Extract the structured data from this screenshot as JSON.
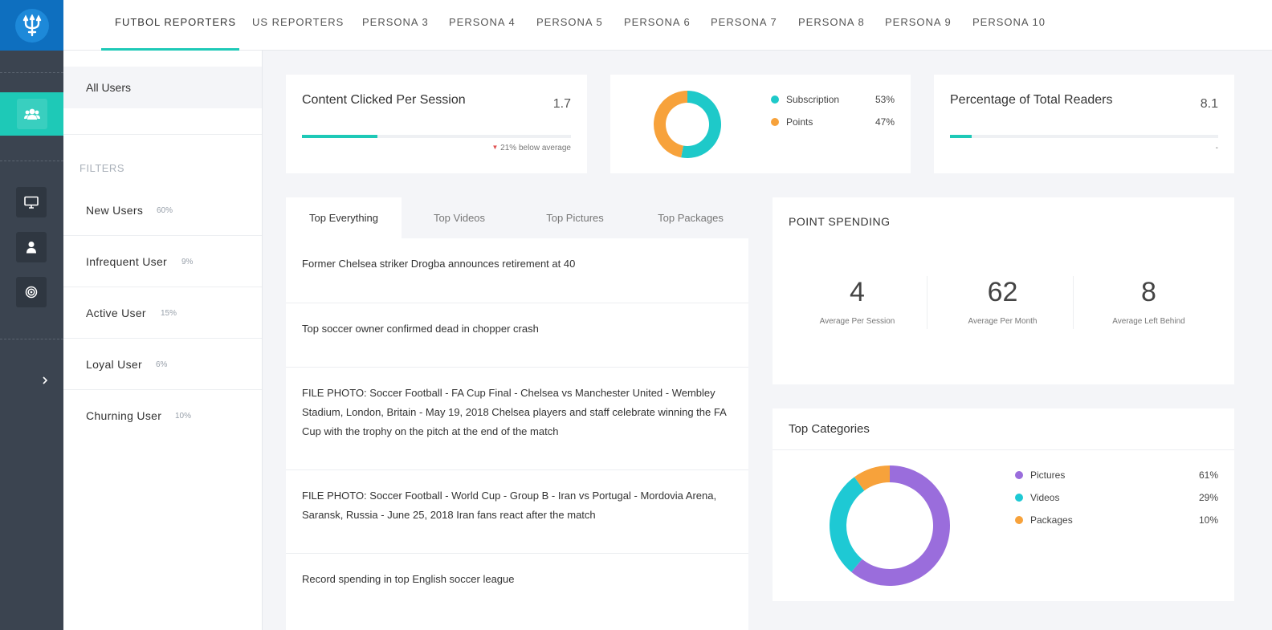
{
  "nav": {
    "tabs": [
      "FUTBOL REPORTERS",
      "US REPORTERS",
      "PERSONA 3",
      "PERSONA 4",
      "PERSONA 5",
      "PERSONA 6",
      "PERSONA 7",
      "PERSONA 8",
      "PERSONA 9",
      "PERSONA 10"
    ],
    "active_tab": "FUTBOL REPORTERS"
  },
  "rail": {
    "icons": [
      "trident-logo-icon",
      "users-icon",
      "monitor-icon",
      "user-icon",
      "target-icon",
      "chevron-right-icon"
    ],
    "active": "users-icon"
  },
  "sidebar": {
    "all_users": "All Users",
    "filters_title": "FILTERS",
    "filters": [
      {
        "label": "New Users",
        "pct": "60%"
      },
      {
        "label": "Infrequent User",
        "pct": "9%"
      },
      {
        "label": "Active User",
        "pct": "15%"
      },
      {
        "label": "Loyal User",
        "pct": "6%"
      },
      {
        "label": "Churning User",
        "pct": "10%"
      }
    ]
  },
  "metrics": {
    "content_clicked": {
      "title": "Content Clicked Per Session",
      "value": "1.7",
      "progress": 0.28,
      "note": "21% below average"
    },
    "total_readers": {
      "title": "Percentage of Total Readers",
      "value": "8.1",
      "progress": 0.08,
      "note": "-"
    }
  },
  "subscription_split": {
    "legend": [
      {
        "label": "Subscription",
        "pct": "53%"
      },
      {
        "label": "Points",
        "pct": "47%"
      }
    ]
  },
  "articles": {
    "tabs": [
      "Top Everything",
      "Top Videos",
      "Top Pictures",
      "Top Packages"
    ],
    "active_tab": "Top Everything",
    "items": [
      "Former Chelsea striker Drogba announces retirement at 40",
      "Top soccer owner confirmed dead in chopper crash",
      "FILE PHOTO: Soccer Football - FA Cup Final - Chelsea vs Manchester United - Wembley Stadium, London, Britain - May 19, 2018 Chelsea players and staff celebrate winning the FA Cup with the trophy on the pitch at the end of the match",
      "FILE PHOTO: Soccer Football - World Cup - Group B - Iran vs Portugal - Mordovia Arena, Saransk, Russia - June 25, 2018 Iran fans react after the match",
      "Record spending in top English soccer league"
    ]
  },
  "point_spending": {
    "title": "POINT SPENDING",
    "stats": [
      {
        "value": "4",
        "label": "Average Per Session"
      },
      {
        "value": "62",
        "label": "Average Per Month"
      },
      {
        "value": "8",
        "label": "Average Left Behind"
      }
    ]
  },
  "top_categories": {
    "title": "Top Categories",
    "legend": [
      {
        "label": "Pictures",
        "pct": "61%"
      },
      {
        "label": "Videos",
        "pct": "29%"
      },
      {
        "label": "Packages",
        "pct": "10%"
      }
    ]
  },
  "chart_data": [
    {
      "type": "pie",
      "categories": [
        "Subscription",
        "Points"
      ],
      "values": [
        53,
        47
      ],
      "colors": [
        "#1ec9c9",
        "#f7a23b"
      ]
    },
    {
      "type": "pie",
      "categories": [
        "Pictures",
        "Videos",
        "Packages"
      ],
      "values": [
        61,
        29,
        10
      ],
      "colors": [
        "#9a6ddc",
        "#1ec9d4",
        "#f7a23b"
      ]
    }
  ],
  "colors": {
    "accent": "#1ec9b7",
    "rail": "#3b4450",
    "logo": "#0e6fbf"
  }
}
